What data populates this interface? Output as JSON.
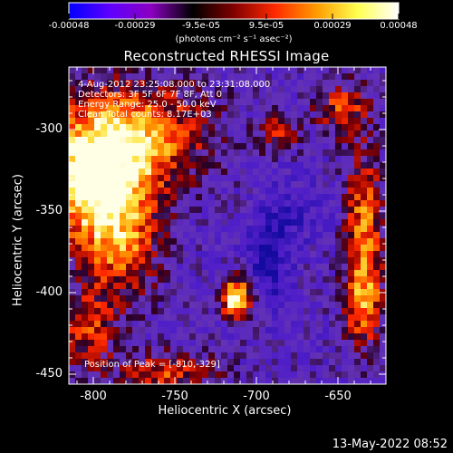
{
  "colorbar": {
    "ticks": [
      "-0.00048",
      "-0.00029",
      "-9.5e-05",
      "9.5e-05",
      "0.00029",
      "0.00048"
    ],
    "units": "(photons cm⁻² s⁻¹ asec⁻²)",
    "colors": [
      "#0000ff",
      "#5f00ff",
      "#8a00c0",
      "#000000",
      "#800000",
      "#ff2a00",
      "#ff9a00",
      "#ffff50",
      "#ffffff"
    ]
  },
  "title": "Reconstructed RHESSI Image",
  "annotations": {
    "time_range": "4-Aug-2012 23:25:08.000 to 23:31:08.000",
    "detectors": "Detectors: 3F 5F 6F 7F 8F, Att 0",
    "energy": "Energy Range: 25.0 - 50.0 keV",
    "method": "Clean    Total counts: 8.17E+03",
    "peak": "Position of Peak = [-810,-329]"
  },
  "axes": {
    "xlabel": "Heliocentric X (arcsec)",
    "ylabel": "Heliocentric Y (arcsec)",
    "xticks": [
      "-800",
      "-750",
      "-700",
      "-650"
    ],
    "yticks": [
      "-300",
      "-350",
      "-400",
      "-450"
    ]
  },
  "timestamp": "13-May-2022 08:52"
}
